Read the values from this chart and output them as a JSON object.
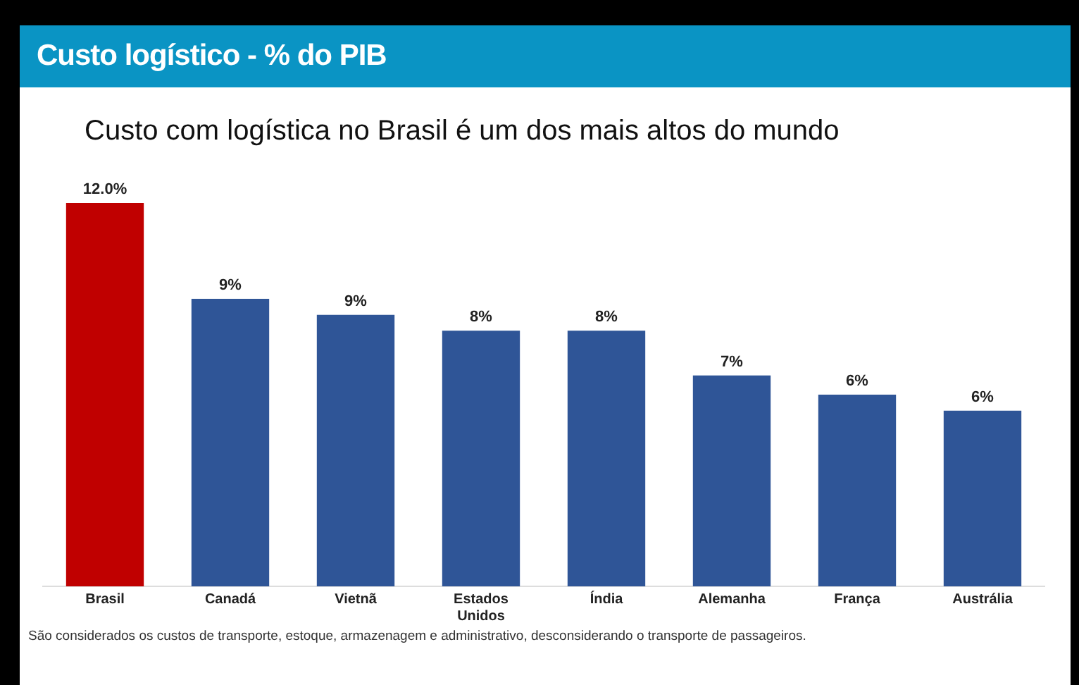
{
  "chart_data": {
    "type": "bar",
    "title": "Custo logístico - % do PIB",
    "subtitle": "Custo com logística no Brasil é um dos mais altos do mundo",
    "categories": [
      "Brasil",
      "Canadá",
      "Vietnã",
      "Estados Unidos",
      "Índia",
      "Alemanha",
      "França",
      "Austrália"
    ],
    "values": [
      12.0,
      9.0,
      8.5,
      8.0,
      8.0,
      6.6,
      6.0,
      5.5
    ],
    "colors": [
      "#c00000",
      "#2f5597",
      "#2f5597",
      "#2f5597",
      "#2f5597",
      "#2f5597",
      "#2f5597",
      "#2f5597"
    ],
    "value_labels": [
      "12.0%",
      "9%",
      "9%",
      "8%",
      "8%",
      "7%",
      "6%",
      "6%"
    ],
    "grid": false,
    "legend": false,
    "annotations": [
      "São considerados os custos de transporte, estoque, armazenagem e administrativo, desconsiderando o transporte de passageiros."
    ]
  }
}
